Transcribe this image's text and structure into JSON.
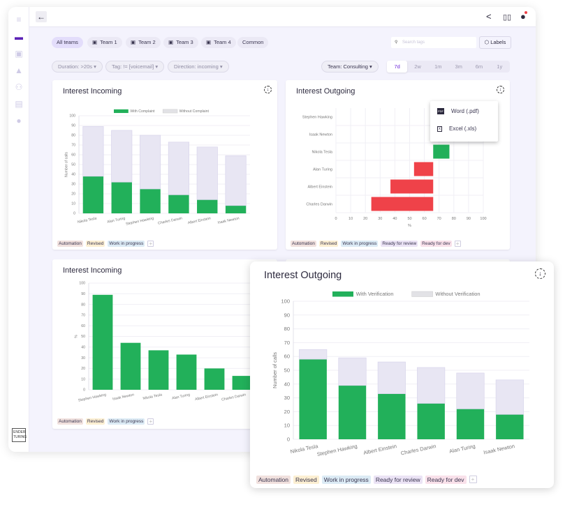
{
  "colors": {
    "accent": "#5b21b6",
    "green": "#22b05a",
    "red": "#ef4249",
    "without": "#e8e6f3"
  },
  "sidebar": {
    "items": [
      "menu-icon",
      "dashboard-icon",
      "inbox-icon",
      "education-icon",
      "users-icon",
      "chart-icon",
      "user-icon"
    ],
    "logo": "ENDER TURING"
  },
  "header": {
    "back": "←",
    "icons": [
      "share-icon",
      "book-icon",
      "account-icon"
    ]
  },
  "teams": [
    "All teams",
    "Team 1",
    "Team 2",
    "Team 3",
    "Team 4",
    "Common"
  ],
  "filters": [
    "Duration: >20s",
    "Tag: != [voicemail]",
    "Direction: incoming"
  ],
  "search": {
    "placeholder": "Search tags"
  },
  "labels_button": "Labels",
  "team_select": "Team: Consulting",
  "ranges": [
    "7d",
    "2w",
    "1m",
    "3m",
    "6m",
    "1y"
  ],
  "active_range": "7d",
  "tags": [
    "Automation",
    "Revised",
    "Work in progress",
    "Ready for review",
    "Ready for dev"
  ],
  "tag_colors": [
    "#f1e1de",
    "#fcefd2",
    "#dcebf5",
    "#ebe3f5",
    "#f9e1ea"
  ],
  "export_menu": {
    "items": [
      "Word (.pdf)",
      "Excel (.xls)"
    ]
  },
  "cards": [
    {
      "title": "Interest Incoming"
    },
    {
      "title": "Interest Outgoing"
    },
    {
      "title": "Interest Incoming"
    },
    {
      "title": ""
    },
    {
      "title": "Interest Outgoing"
    }
  ],
  "chart_data": [
    {
      "type": "bar",
      "stacked": true,
      "title": "Interest Incoming",
      "ylabel": "Number of calls",
      "ylim": [
        0,
        100
      ],
      "yticks": [
        0,
        10,
        20,
        30,
        40,
        50,
        60,
        70,
        80,
        90,
        100
      ],
      "categories": [
        "Nikola Tesla",
        "Alan Turing",
        "Stephen Hawking",
        "Charles Darwin",
        "Albert Einstein",
        "Isaak Newton"
      ],
      "series": [
        {
          "name": "With Complaint",
          "values": [
            38,
            32,
            25,
            19,
            14,
            8
          ]
        },
        {
          "name": "Without Complaint",
          "values": [
            51,
            53,
            55,
            54,
            54,
            51
          ]
        }
      ],
      "legend": "top"
    },
    {
      "type": "bar",
      "orientation": "horizontal",
      "title": "Interest Outgoing",
      "xlabel": "%",
      "xlim": [
        0,
        100
      ],
      "xticks": [
        0,
        10,
        20,
        30,
        40,
        50,
        60,
        70,
        80,
        90,
        100
      ],
      "categories": [
        "Stephen Hawking",
        "Isaak Newton",
        "Nikola Tesla",
        "Alan Turing",
        "Albert Einstein",
        "Charles Darwin"
      ],
      "ranges": [
        null,
        [
          66,
          85
        ],
        [
          66,
          77
        ],
        [
          53,
          66
        ],
        [
          37,
          66
        ],
        [
          24,
          66
        ]
      ],
      "colors": [
        "#22b05a",
        "#22b05a",
        "#22b05a",
        "#ef4249",
        "#ef4249",
        "#ef4249"
      ]
    },
    {
      "type": "bar",
      "title": "Interest Incoming",
      "ylabel": "%",
      "ylim": [
        0,
        100
      ],
      "yticks": [
        0,
        10,
        20,
        30,
        40,
        50,
        60,
        70,
        80,
        90,
        100
      ],
      "categories": [
        "Stephen Hawking",
        "Isaak Newton",
        "Nikola Tesla",
        "Alan Turing",
        "Albert Einstein",
        "Charles Darwin"
      ],
      "values": [
        89,
        44,
        37,
        33,
        20,
        13
      ]
    },
    {
      "type": "bar",
      "stacked": true,
      "title": "Interest Outgoing",
      "ylabel": "Number of calls",
      "ylim": [
        0,
        100
      ],
      "yticks": [
        0,
        10,
        20,
        30,
        40,
        50,
        60,
        70,
        80,
        90,
        100
      ],
      "categories": [
        "Nikola Tesla",
        "Stephen Hawking",
        "Albert Einstein",
        "Charles Darwin",
        "Alan Turing",
        "Isaak Newton"
      ],
      "series": [
        {
          "name": "With Verification",
          "values": [
            58,
            39,
            33,
            26,
            22,
            18
          ]
        },
        {
          "name": "Without Verification",
          "values": [
            7,
            20,
            23,
            26,
            26,
            25
          ]
        }
      ],
      "legend": "top"
    }
  ]
}
